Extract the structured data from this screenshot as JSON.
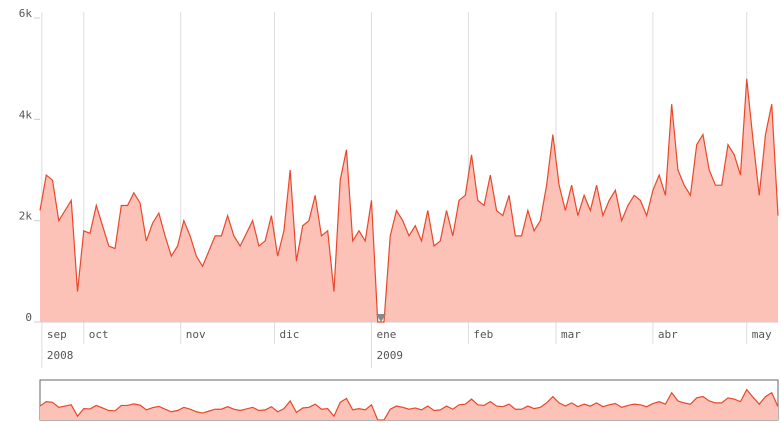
{
  "chart_data": {
    "type": "area",
    "x": [
      0,
      2,
      4,
      6,
      8,
      10,
      12,
      14,
      16,
      18,
      20,
      22,
      24,
      26,
      28,
      30,
      32,
      34,
      36,
      38,
      40,
      42,
      44,
      46,
      48,
      50,
      52,
      54,
      56,
      58,
      60,
      62,
      64,
      66,
      68,
      70,
      72,
      74,
      76,
      78,
      80,
      82,
      84,
      86,
      88,
      90,
      92,
      94,
      96,
      98,
      100,
      102,
      104,
      106,
      108,
      110,
      112,
      114,
      116,
      118,
      120,
      122,
      124,
      126,
      128,
      130,
      132,
      134,
      136,
      138,
      140,
      142,
      144,
      146,
      148,
      150,
      152,
      154,
      156,
      158,
      160,
      162,
      164,
      166,
      168,
      170,
      172,
      174,
      176,
      178,
      180,
      182,
      184,
      186,
      188,
      190,
      192,
      194,
      196,
      198,
      200,
      202,
      204,
      206,
      208,
      210,
      212,
      214,
      216,
      218,
      220,
      222,
      224,
      226,
      228,
      230,
      232,
      234,
      236
    ],
    "values": [
      2200,
      2900,
      2800,
      2000,
      2200,
      2400,
      600,
      1800,
      1750,
      2300,
      1900,
      1500,
      1450,
      2300,
      2300,
      2550,
      2350,
      1600,
      1950,
      2150,
      1700,
      1300,
      1500,
      2000,
      1700,
      1300,
      1100,
      1400,
      1700,
      1700,
      2100,
      1700,
      1500,
      1750,
      2000,
      1500,
      1600,
      2100,
      1300,
      1800,
      3000,
      1200,
      1900,
      2000,
      2500,
      1700,
      1800,
      600,
      2800,
      3400,
      1600,
      1800,
      1600,
      2400,
      0,
      0,
      1700,
      2200,
      2000,
      1700,
      1900,
      1600,
      2200,
      1500,
      1600,
      2200,
      1700,
      2400,
      2500,
      3300,
      2400,
      2300,
      2900,
      2200,
      2100,
      2500,
      1700,
      1700,
      2200,
      1800,
      2000,
      2700,
      3700,
      2700,
      2200,
      2700,
      2100,
      2500,
      2200,
      2700,
      2100,
      2400,
      2600,
      2000,
      2300,
      2500,
      2400,
      2100,
      2600,
      2900,
      2500,
      4300,
      3000,
      2700,
      2500,
      3500,
      3700,
      3000,
      2700,
      2700,
      3500,
      3300,
      2900,
      4800,
      3600,
      2500,
      3700,
      4300,
      2100
    ],
    "color": "#e8482a",
    "fill": "#fcc2b8",
    "xlim": [
      0,
      236
    ],
    "xticks": [
      {
        "value": 0.6,
        "label": "sep"
      },
      {
        "value": 14,
        "label": "oct"
      },
      {
        "value": 45,
        "label": "nov"
      },
      {
        "value": 75,
        "label": "dic"
      },
      {
        "value": 106,
        "label": "ene"
      },
      {
        "value": 137,
        "label": "feb"
      },
      {
        "value": 165,
        "label": "mar"
      },
      {
        "value": 196,
        "label": "abr"
      },
      {
        "value": 226,
        "label": "may"
      }
    ],
    "year_ticks": [
      {
        "value": 0.6,
        "label": "2008"
      },
      {
        "value": 106,
        "label": "2009"
      }
    ],
    "ylim": [
      0,
      6000
    ],
    "yticks": [
      {
        "value": 0,
        "label": "0"
      },
      {
        "value": 2000,
        "label": "2k"
      },
      {
        "value": 4000,
        "label": "4k"
      },
      {
        "value": 6000,
        "label": "6k"
      }
    ],
    "grid": true
  }
}
